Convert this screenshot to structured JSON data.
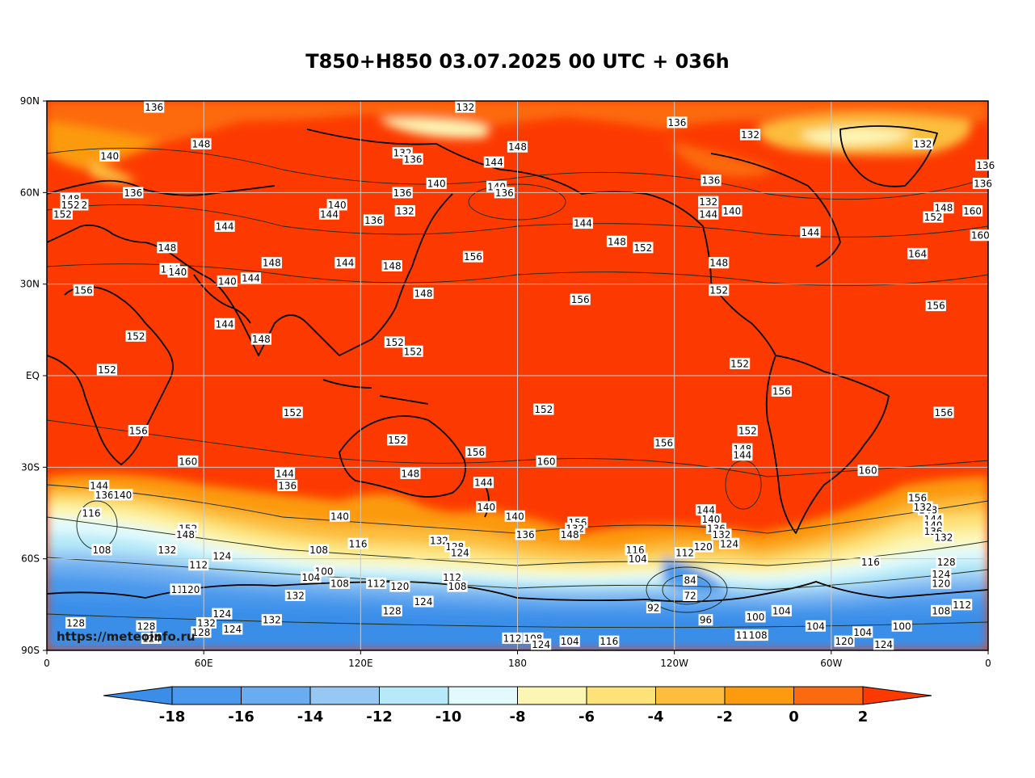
{
  "title": "T850+H850 03.07.2025 00 UTC + 036h",
  "watermark": "https://meteoinfo.ru",
  "axes": {
    "y_ticks": [
      "90N",
      "60N",
      "30N",
      "EQ",
      "30S",
      "60S",
      "90S"
    ],
    "x_ticks": [
      "0",
      "60E",
      "120E",
      "180",
      "120W",
      "60W",
      "0"
    ]
  },
  "colorbar": {
    "levels": [
      "-18",
      "-16",
      "-14",
      "-12",
      "-10",
      "-8",
      "-6",
      "-4",
      "-2",
      "0",
      "2"
    ],
    "colors": [
      "#3a8ee8",
      "#4a98ec",
      "#6aacf0",
      "#96c8f4",
      "#b6eaf8",
      "#e2fafc",
      "#fcf6b4",
      "#fde27a",
      "#fcbe3c",
      "#fc9a10",
      "#fc6a10",
      "#fc3a00"
    ]
  },
  "contour_labels": [
    {
      "text": "136",
      "lon": 41,
      "lat": 88
    },
    {
      "text": "132",
      "lon": 160,
      "lat": 88
    },
    {
      "text": "136",
      "lon": 241,
      "lat": 83
    },
    {
      "text": "132",
      "lon": 269,
      "lat": 79
    },
    {
      "text": "132",
      "lon": 335,
      "lat": 76
    },
    {
      "text": "148",
      "lon": 59,
      "lat": 76
    },
    {
      "text": "148",
      "lon": 180,
      "lat": 75
    },
    {
      "text": "140",
      "lon": 24,
      "lat": 72
    },
    {
      "text": "132",
      "lon": 136,
      "lat": 73
    },
    {
      "text": "136",
      "lon": 140,
      "lat": 71
    },
    {
      "text": "144",
      "lon": 171,
      "lat": 70
    },
    {
      "text": "136",
      "lon": 359,
      "lat": 69
    },
    {
      "text": "140",
      "lon": 149,
      "lat": 63
    },
    {
      "text": "140",
      "lon": 172,
      "lat": 62
    },
    {
      "text": "136",
      "lon": 33,
      "lat": 60
    },
    {
      "text": "136",
      "lon": 136,
      "lat": 60
    },
    {
      "text": "136",
      "lon": 254,
      "lat": 64
    },
    {
      "text": "136",
      "lon": 358,
      "lat": 63
    },
    {
      "text": "136",
      "lon": 175,
      "lat": 60
    },
    {
      "text": "148",
      "lon": 9,
      "lat": 58
    },
    {
      "text": "132",
      "lon": 12,
      "lat": 56
    },
    {
      "text": "132",
      "lon": 253,
      "lat": 57
    },
    {
      "text": "132",
      "lon": 137,
      "lat": 54
    },
    {
      "text": "140",
      "lon": 111,
      "lat": 56
    },
    {
      "text": "144",
      "lon": 108,
      "lat": 53
    },
    {
      "text": "136",
      "lon": 125,
      "lat": 51
    },
    {
      "text": "144",
      "lon": 253,
      "lat": 53
    },
    {
      "text": "140",
      "lon": 262,
      "lat": 54
    },
    {
      "text": "144",
      "lon": 68,
      "lat": 49
    },
    {
      "text": "144",
      "lon": 205,
      "lat": 50
    },
    {
      "text": "152",
      "lon": 6,
      "lat": 53
    },
    {
      "text": "152",
      "lon": 9,
      "lat": 56
    },
    {
      "text": "148",
      "lon": 218,
      "lat": 44
    },
    {
      "text": "152",
      "lon": 228,
      "lat": 42
    },
    {
      "text": "148",
      "lon": 46,
      "lat": 42
    },
    {
      "text": "144",
      "lon": 47,
      "lat": 35
    },
    {
      "text": "140",
      "lon": 50,
      "lat": 34
    },
    {
      "text": "148",
      "lon": 86,
      "lat": 37
    },
    {
      "text": "144",
      "lon": 114,
      "lat": 37
    },
    {
      "text": "148",
      "lon": 132,
      "lat": 36
    },
    {
      "text": "156",
      "lon": 163,
      "lat": 39
    },
    {
      "text": "148",
      "lon": 257,
      "lat": 37
    },
    {
      "text": "140",
      "lon": 69,
      "lat": 31
    },
    {
      "text": "144",
      "lon": 78,
      "lat": 32
    },
    {
      "text": "156",
      "lon": 14,
      "lat": 28
    },
    {
      "text": "152",
      "lon": 257,
      "lat": 28
    },
    {
      "text": "148",
      "lon": 144,
      "lat": 27
    },
    {
      "text": "156",
      "lon": 204,
      "lat": 25
    },
    {
      "text": "144",
      "lon": 68,
      "lat": 17
    },
    {
      "text": "152",
      "lon": 34,
      "lat": 13
    },
    {
      "text": "148",
      "lon": 82,
      "lat": 12
    },
    {
      "text": "152",
      "lon": 133,
      "lat": 11
    },
    {
      "text": "152",
      "lon": 140,
      "lat": 8
    },
    {
      "text": "152",
      "lon": 265,
      "lat": 4
    },
    {
      "text": "152",
      "lon": 23,
      "lat": 2
    },
    {
      "text": "156",
      "lon": 281,
      "lat": -5
    },
    {
      "text": "152",
      "lon": 94,
      "lat": -12
    },
    {
      "text": "152",
      "lon": 190,
      "lat": -11
    },
    {
      "text": "156",
      "lon": 343,
      "lat": -12
    },
    {
      "text": "156",
      "lon": 35,
      "lat": -18
    },
    {
      "text": "152",
      "lon": 268,
      "lat": -18
    },
    {
      "text": "152",
      "lon": 134,
      "lat": -21
    },
    {
      "text": "156",
      "lon": 236,
      "lat": -22
    },
    {
      "text": "148",
      "lon": 266,
      "lat": -24
    },
    {
      "text": "156",
      "lon": 164,
      "lat": -25
    },
    {
      "text": "144",
      "lon": 266,
      "lat": -26
    },
    {
      "text": "160",
      "lon": 54,
      "lat": -28
    },
    {
      "text": "160",
      "lon": 191,
      "lat": -28
    },
    {
      "text": "148",
      "lon": 139,
      "lat": -32
    },
    {
      "text": "160",
      "lon": 314,
      "lat": -31
    },
    {
      "text": "144",
      "lon": 91,
      "lat": -32
    },
    {
      "text": "144",
      "lon": 20,
      "lat": -36
    },
    {
      "text": "136",
      "lon": 92,
      "lat": -36
    },
    {
      "text": "136",
      "lon": 22,
      "lat": -39
    },
    {
      "text": "140",
      "lon": 29,
      "lat": -39
    },
    {
      "text": "144",
      "lon": 167,
      "lat": -35
    },
    {
      "text": "156",
      "lon": 333,
      "lat": -40
    },
    {
      "text": "140",
      "lon": 168,
      "lat": -43
    },
    {
      "text": "148",
      "lon": 337,
      "lat": -44
    },
    {
      "text": "132",
      "lon": 335,
      "lat": -43
    },
    {
      "text": "144",
      "lon": 252,
      "lat": -44
    },
    {
      "text": "140",
      "lon": 112,
      "lat": -46
    },
    {
      "text": "140",
      "lon": 179,
      "lat": -46
    },
    {
      "text": "144",
      "lon": 339,
      "lat": -47
    },
    {
      "text": "116",
      "lon": 17,
      "lat": -45
    },
    {
      "text": "140",
      "lon": 254,
      "lat": -47
    },
    {
      "text": "140",
      "lon": 339,
      "lat": -49
    },
    {
      "text": "156",
      "lon": 203,
      "lat": -48
    },
    {
      "text": "132",
      "lon": 202,
      "lat": -50
    },
    {
      "text": "136",
      "lon": 256,
      "lat": -50
    },
    {
      "text": "136",
      "lon": 339,
      "lat": -51
    },
    {
      "text": "132",
      "lon": 258,
      "lat": -52
    },
    {
      "text": "152",
      "lon": 54,
      "lat": -50
    },
    {
      "text": "148",
      "lon": 53,
      "lat": -52
    },
    {
      "text": "136",
      "lon": 183,
      "lat": -52
    },
    {
      "text": "148",
      "lon": 200,
      "lat": -52
    },
    {
      "text": "132",
      "lon": 343,
      "lat": -53
    },
    {
      "text": "124",
      "lon": 261,
      "lat": -55
    },
    {
      "text": "120",
      "lon": 251,
      "lat": -56
    },
    {
      "text": "116",
      "lon": 119,
      "lat": -55
    },
    {
      "text": "132",
      "lon": 150,
      "lat": -54
    },
    {
      "text": "128",
      "lon": 156,
      "lat": -56
    },
    {
      "text": "124",
      "lon": 158,
      "lat": -58
    },
    {
      "text": "108",
      "lon": 21,
      "lat": -57
    },
    {
      "text": "132",
      "lon": 46,
      "lat": -57
    },
    {
      "text": "124",
      "lon": 67,
      "lat": -59
    },
    {
      "text": "108",
      "lon": 104,
      "lat": -57
    },
    {
      "text": "116",
      "lon": 225,
      "lat": -57
    },
    {
      "text": "112",
      "lon": 244,
      "lat": -58
    },
    {
      "text": "116",
      "lon": 315,
      "lat": -61
    },
    {
      "text": "128",
      "lon": 344,
      "lat": -61
    },
    {
      "text": "104",
      "lon": 226,
      "lat": -60
    },
    {
      "text": "112",
      "lon": 58,
      "lat": -62
    },
    {
      "text": "100",
      "lon": 106,
      "lat": -64
    },
    {
      "text": "104",
      "lon": 101,
      "lat": -66
    },
    {
      "text": "112",
      "lon": 155,
      "lat": -66
    },
    {
      "text": "124",
      "lon": 342,
      "lat": -65
    },
    {
      "text": "108",
      "lon": 112,
      "lat": -68
    },
    {
      "text": "112",
      "lon": 126,
      "lat": -68
    },
    {
      "text": "120",
      "lon": 135,
      "lat": -69
    },
    {
      "text": "108",
      "lon": 157,
      "lat": -69
    },
    {
      "text": "84",
      "lon": 246,
      "lat": -67
    },
    {
      "text": "120",
      "lon": 342,
      "lat": -68
    },
    {
      "text": "112",
      "lon": 51,
      "lat": -70
    },
    {
      "text": "120",
      "lon": 55,
      "lat": -70
    },
    {
      "text": "132",
      "lon": 95,
      "lat": -72
    },
    {
      "text": "72",
      "lon": 246,
      "lat": -72
    },
    {
      "text": "124",
      "lon": 144,
      "lat": -74
    },
    {
      "text": "112",
      "lon": 350,
      "lat": -75
    },
    {
      "text": "128",
      "lon": 132,
      "lat": -77
    },
    {
      "text": "92",
      "lon": 232,
      "lat": -76
    },
    {
      "text": "104",
      "lon": 281,
      "lat": -77
    },
    {
      "text": "124",
      "lon": 67,
      "lat": -78
    },
    {
      "text": "96",
      "lon": 252,
      "lat": -80
    },
    {
      "text": "100",
      "lon": 271,
      "lat": -79
    },
    {
      "text": "108",
      "lon": 342,
      "lat": -77
    },
    {
      "text": "132",
      "lon": 86,
      "lat": -80
    },
    {
      "text": "132",
      "lon": 61,
      "lat": -81
    },
    {
      "text": "104",
      "lon": 294,
      "lat": -82
    },
    {
      "text": "100",
      "lon": 327,
      "lat": -82
    },
    {
      "text": "128",
      "lon": 11,
      "lat": -81
    },
    {
      "text": "128",
      "lon": 38,
      "lat": -82
    },
    {
      "text": "124",
      "lon": 71,
      "lat": -83
    },
    {
      "text": "128",
      "lon": 59,
      "lat": -84
    },
    {
      "text": "104",
      "lon": 312,
      "lat": -84
    },
    {
      "text": "112",
      "lon": 267,
      "lat": -85
    },
    {
      "text": "108",
      "lon": 272,
      "lat": -85
    },
    {
      "text": "124",
      "lon": 40,
      "lat": -86
    },
    {
      "text": "112",
      "lon": 178,
      "lat": -86
    },
    {
      "text": "108",
      "lon": 186,
      "lat": -86
    },
    {
      "text": "104",
      "lon": 200,
      "lat": -87
    },
    {
      "text": "116",
      "lon": 215,
      "lat": -87
    },
    {
      "text": "124",
      "lon": 189,
      "lat": -88
    },
    {
      "text": "120",
      "lon": 305,
      "lat": -87
    },
    {
      "text": "124",
      "lon": 320,
      "lat": -88
    },
    {
      "text": "160",
      "lon": 357,
      "lat": 46
    },
    {
      "text": "160",
      "lon": 354,
      "lat": 54
    },
    {
      "text": "152",
      "lon": 339,
      "lat": 52
    },
    {
      "text": "148",
      "lon": 343,
      "lat": 55
    },
    {
      "text": "144",
      "lon": 292,
      "lat": 47
    },
    {
      "text": "164",
      "lon": 333,
      "lat": 40
    },
    {
      "text": "156",
      "lon": 340,
      "lat": 23
    }
  ]
}
